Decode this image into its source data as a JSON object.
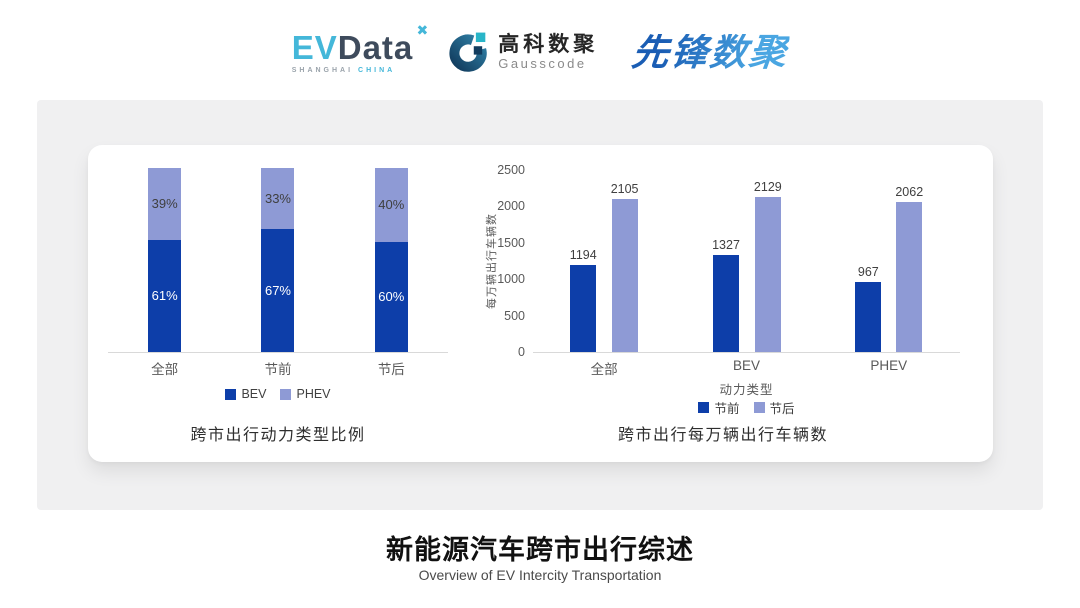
{
  "header": {
    "evdata": {
      "part1": "EV",
      "part2": "Data",
      "mark": "✖",
      "sub1": "SHANGHAI",
      "sub2": "CHINA"
    },
    "gausscode": {
      "cn": "高科数聚",
      "en": "Gausscode"
    },
    "pioneer": {
      "text": "先锋数聚"
    }
  },
  "colors": {
    "series_dark_blue": "#0d3ea9",
    "series_periwinkle": "#8e9ad5",
    "evdata_cyan": "#44b7d9",
    "evdata_slate": "#3e4b5c",
    "gausscode_navy": "#17527b",
    "gausscode_cyan": "#29b5c8",
    "pioneer_blue": "#2f7fc4",
    "card_gray": "#f0f0f1",
    "axis_gray": "#d9d9d9"
  },
  "chart_data": [
    {
      "type": "bar",
      "variant": "stacked-percent",
      "title": "跨市出行动力类型比例",
      "categories": [
        "全部",
        "节前",
        "节后"
      ],
      "series": [
        {
          "name": "BEV",
          "color": "#0d3ea9",
          "values": [
            61,
            67,
            60
          ],
          "label_suffix": "%",
          "label_color": "#ffffff"
        },
        {
          "name": "PHEV",
          "color": "#8e9ad5",
          "values": [
            39,
            33,
            40
          ],
          "label_suffix": "%",
          "label_color": "#3f3f3f"
        }
      ],
      "ylim": [
        0,
        100
      ],
      "grid": false,
      "legend_position": "bottom"
    },
    {
      "type": "bar",
      "variant": "grouped",
      "title": "跨市出行每万辆出行车辆数",
      "categories": [
        "全部",
        "BEV",
        "PHEV"
      ],
      "xlabel": "动力类型",
      "ylabel": "每万辆出行车辆数",
      "ylim": [
        0,
        2500
      ],
      "yticks": [
        0,
        500,
        1000,
        1500,
        2000,
        2500
      ],
      "grid": false,
      "legend_position": "bottom",
      "series": [
        {
          "name": "节前",
          "color": "#0d3ea9",
          "values": [
            1194,
            1327,
            967
          ]
        },
        {
          "name": "节后",
          "color": "#8e9ad5",
          "values": [
            2105,
            2129,
            2062
          ]
        }
      ]
    }
  ],
  "footer": {
    "title": "新能源汽车跨市出行综述",
    "subtitle": "Overview of EV Intercity Transportation"
  }
}
